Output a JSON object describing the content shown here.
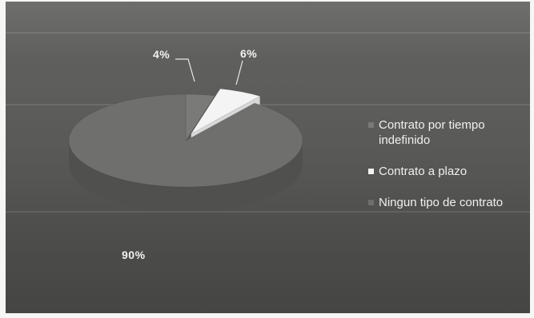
{
  "chart_data": {
    "type": "pie",
    "title": "",
    "categories": [
      "Contrato por tiempo indefinido",
      "Contrato a plazo",
      "Ningun tipo de contrato"
    ],
    "values": [
      4,
      6,
      90
    ],
    "value_labels": [
      "4%",
      "6%",
      "90%"
    ],
    "colors": [
      "#7a7a78",
      "#f4f4f4",
      "#6f6f6d"
    ],
    "legend_position": "right",
    "style": "3d"
  }
}
